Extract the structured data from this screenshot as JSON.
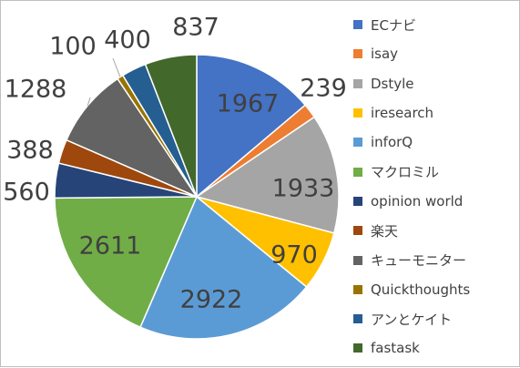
{
  "chart_data": {
    "type": "pie",
    "start_angle_deg": 0,
    "direction": "clockwise",
    "legend_position": "right",
    "slices": [
      {
        "label": "ECナビ",
        "value": 1967,
        "color": "#4472c4"
      },
      {
        "label": "isay",
        "value": 239,
        "color": "#ed7d31"
      },
      {
        "label": "Dstyle",
        "value": 1933,
        "color": "#a5a5a5"
      },
      {
        "label": "iresearch",
        "value": 970,
        "color": "#ffc000"
      },
      {
        "label": "inforQ",
        "value": 2922,
        "color": "#5b9bd5"
      },
      {
        "label": "マクロミル",
        "value": 2611,
        "color": "#70ad47"
      },
      {
        "label": "opinion world",
        "value": 560,
        "color": "#264478"
      },
      {
        "label": "楽天",
        "value": 388,
        "color": "#9e480e"
      },
      {
        "label": "キューモニター",
        "value": 1288,
        "color": "#636363"
      },
      {
        "label": "Quickthoughts",
        "value": 100,
        "color": "#997300"
      },
      {
        "label": "アンとケイト",
        "value": 400,
        "color": "#255e91"
      },
      {
        "label": "fastask",
        "value": 837,
        "color": "#43682b"
      }
    ]
  }
}
